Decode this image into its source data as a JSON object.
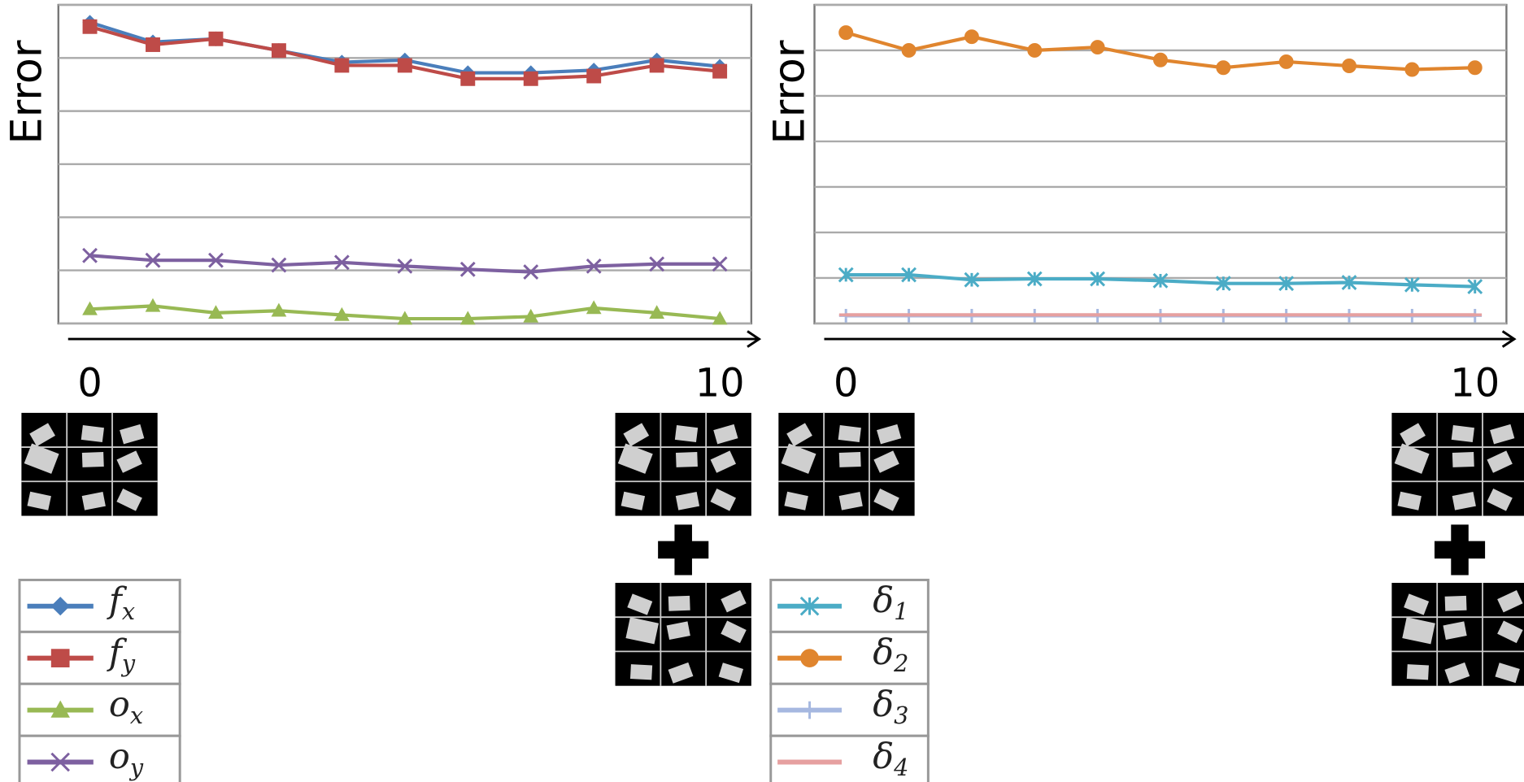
{
  "chart_data": [
    {
      "type": "line",
      "ylabel": "Error",
      "x": [
        0,
        1,
        2,
        3,
        4,
        5,
        6,
        7,
        8,
        9,
        10
      ],
      "xlim": [
        -0.5,
        10.5
      ],
      "xticks": [
        0,
        10
      ],
      "ylim": [
        0,
        6
      ],
      "yticks": [
        0,
        1,
        2,
        3,
        4,
        5,
        6
      ],
      "grid": true,
      "series": [
        {
          "name": "fx",
          "color": "#4a7ebb",
          "marker": "diamond",
          "values": [
            5.67,
            5.3,
            5.36,
            5.14,
            4.92,
            4.96,
            4.72,
            4.72,
            4.77,
            4.96,
            4.84
          ]
        },
        {
          "name": "fy",
          "color": "#be4b48",
          "marker": "square",
          "values": [
            5.59,
            5.25,
            5.36,
            5.14,
            4.86,
            4.86,
            4.61,
            4.61,
            4.66,
            4.86,
            4.75
          ]
        },
        {
          "name": "ox",
          "color": "#98b954",
          "marker": "triangle",
          "values": [
            0.27,
            0.33,
            0.2,
            0.24,
            0.16,
            0.09,
            0.09,
            0.13,
            0.29,
            0.2,
            0.09
          ]
        },
        {
          "name": "oy",
          "color": "#7d60a0",
          "marker": "x",
          "values": [
            1.28,
            1.19,
            1.19,
            1.1,
            1.15,
            1.08,
            1.02,
            0.97,
            1.08,
            1.12,
            1.12
          ]
        }
      ]
    },
    {
      "type": "line",
      "ylabel": "Error",
      "x": [
        0,
        1,
        2,
        3,
        4,
        5,
        6,
        7,
        8,
        9,
        10
      ],
      "xlim": [
        -0.5,
        10.5
      ],
      "xticks": [
        0,
        10
      ],
      "ylim": [
        0,
        7
      ],
      "yticks": [
        0,
        1,
        2,
        3,
        4,
        5,
        6,
        7
      ],
      "grid": true,
      "series": [
        {
          "name": "δ1",
          "color": "#4bacc6",
          "marker": "star",
          "values": [
            1.07,
            1.07,
            0.96,
            0.98,
            0.98,
            0.94,
            0.88,
            0.88,
            0.9,
            0.85,
            0.81
          ]
        },
        {
          "name": "δ2",
          "color": "#e0852e",
          "marker": "circle",
          "values": [
            6.39,
            6.0,
            6.3,
            6.0,
            6.07,
            5.79,
            5.62,
            5.75,
            5.66,
            5.58,
            5.62
          ]
        },
        {
          "name": "δ3",
          "color": "#a6b8e0",
          "marker": "plus",
          "values": [
            0.17,
            0.17,
            0.17,
            0.17,
            0.17,
            0.17,
            0.17,
            0.17,
            0.17,
            0.17,
            0.17
          ]
        },
        {
          "name": "δ4",
          "color": "#e6a0a0",
          "marker": "dash",
          "values": [
            0.19,
            0.19,
            0.19,
            0.19,
            0.19,
            0.19,
            0.19,
            0.19,
            0.19,
            0.19,
            0.19
          ]
        }
      ]
    }
  ]
}
